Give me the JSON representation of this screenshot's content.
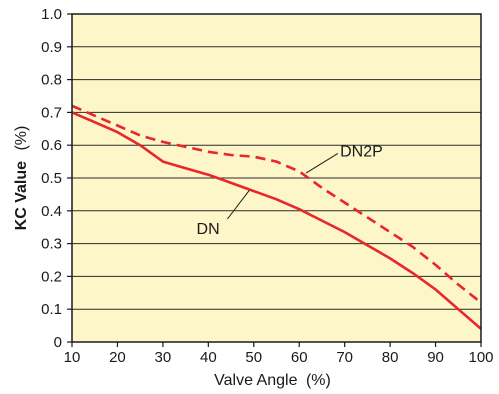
{
  "chart_data": {
    "type": "line",
    "xlabel": "Valve Angle",
    "xlabel_unit": "(%)",
    "ylabel": "KC Value",
    "ylabel_unit": "(%)",
    "xlim": [
      10,
      100
    ],
    "ylim": [
      0,
      1.0
    ],
    "xticks": [
      "10",
      "20",
      "30",
      "40",
      "50",
      "60",
      "70",
      "80",
      "90",
      "100"
    ],
    "yticks": [
      "0",
      "0.1",
      "0.2",
      "0.3",
      "0.4",
      "0.5",
      "0.6",
      "0.7",
      "0.8",
      "0.9",
      "1.0"
    ],
    "grid": "horizontal",
    "background_color": "#fdf6c8",
    "line_color": "#e8262b",
    "series": [
      {
        "name": "DN",
        "style": "solid",
        "x": [
          10,
          15,
          20,
          25,
          30,
          35,
          40,
          45,
          50,
          55,
          60,
          65,
          70,
          75,
          80,
          85,
          90,
          95,
          100
        ],
        "y": [
          0.7,
          0.67,
          0.64,
          0.6,
          0.55,
          0.53,
          0.51,
          0.485,
          0.46,
          0.435,
          0.405,
          0.37,
          0.335,
          0.295,
          0.255,
          0.21,
          0.16,
          0.1,
          0.04
        ]
      },
      {
        "name": "DN2P",
        "style": "dashed",
        "x": [
          10,
          15,
          20,
          25,
          30,
          35,
          40,
          45,
          50,
          55,
          60,
          65,
          70,
          75,
          80,
          85,
          90,
          95,
          100
        ],
        "y": [
          0.72,
          0.69,
          0.66,
          0.63,
          0.61,
          0.595,
          0.58,
          0.57,
          0.565,
          0.55,
          0.52,
          0.47,
          0.425,
          0.38,
          0.335,
          0.29,
          0.235,
          0.175,
          0.12
        ]
      }
    ],
    "annotations": [
      {
        "text": "DN2P",
        "series": "DN2P"
      },
      {
        "text": "DN",
        "series": "DN"
      }
    ]
  }
}
